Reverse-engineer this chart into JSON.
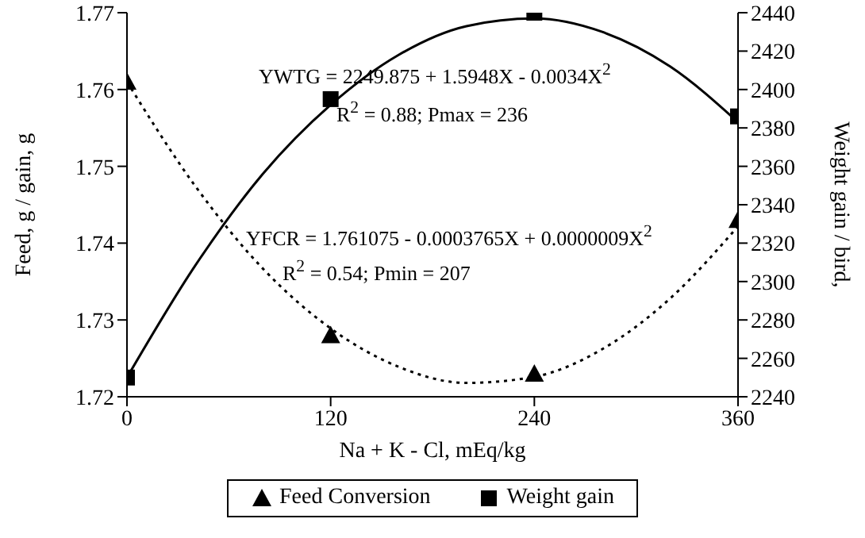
{
  "chart_data": {
    "type": "scatter",
    "xlabel": "Na + K - Cl, mEq/kg",
    "ylabel": "Feed, g / gain, g",
    "y2label": "Weight gain / bird,",
    "xlim": [
      0,
      360
    ],
    "xticks": [
      0,
      120,
      240,
      360
    ],
    "ylim": [
      1.72,
      1.77
    ],
    "yticks": [
      1.72,
      1.73,
      1.74,
      1.75,
      1.76,
      1.77
    ],
    "y2lim": [
      2240,
      2440
    ],
    "y2ticks": [
      2240,
      2260,
      2280,
      2300,
      2320,
      2340,
      2360,
      2380,
      2400,
      2420,
      2440
    ],
    "legend": "bottom",
    "grid": false,
    "series": [
      {
        "name": "Feed Conversion",
        "marker": "triangle",
        "color": "#000000",
        "x": [
          0,
          120,
          240,
          360
        ],
        "values": [
          1.761,
          1.728,
          1.723,
          1.743
        ]
      },
      {
        "name": "Weight gain",
        "marker": "square",
        "color": "#000000",
        "axis": "y2",
        "x": [
          0,
          120,
          240,
          360
        ],
        "values": [
          2250,
          2395,
          2440,
          2386
        ]
      },
      {
        "type": "line",
        "line_style": "dotted",
        "marker": "none",
        "color": "#000000",
        "x": [
          0,
          40,
          80,
          120,
          160,
          200,
          240,
          280,
          320,
          360
        ],
        "values": [
          1.761,
          1.7475,
          1.7367,
          1.7289,
          1.7239,
          1.7218,
          1.7226,
          1.7262,
          1.7328,
          1.7422
        ]
      },
      {
        "type": "line",
        "line_style": "solid",
        "marker": "none",
        "color": "#000000",
        "axis": "y2",
        "x": [
          0,
          40,
          80,
          120,
          160,
          200,
          240,
          280,
          320,
          360
        ],
        "values": [
          2250,
          2308,
          2356,
          2392,
          2418,
          2433,
          2437,
          2430,
          2412,
          2383
        ]
      }
    ],
    "annotations": [
      "YWTG = 2249.875 + 1.5948X - 0.0034X$^{2}$",
      "R$^{2}$ = 0.88; Pmax = 236",
      "YFCR = 1.761075 - 0.0003765X  + 0.0000009X$^{2}$",
      "R$^{2}$ = 0.54; Pmin = 207"
    ]
  }
}
